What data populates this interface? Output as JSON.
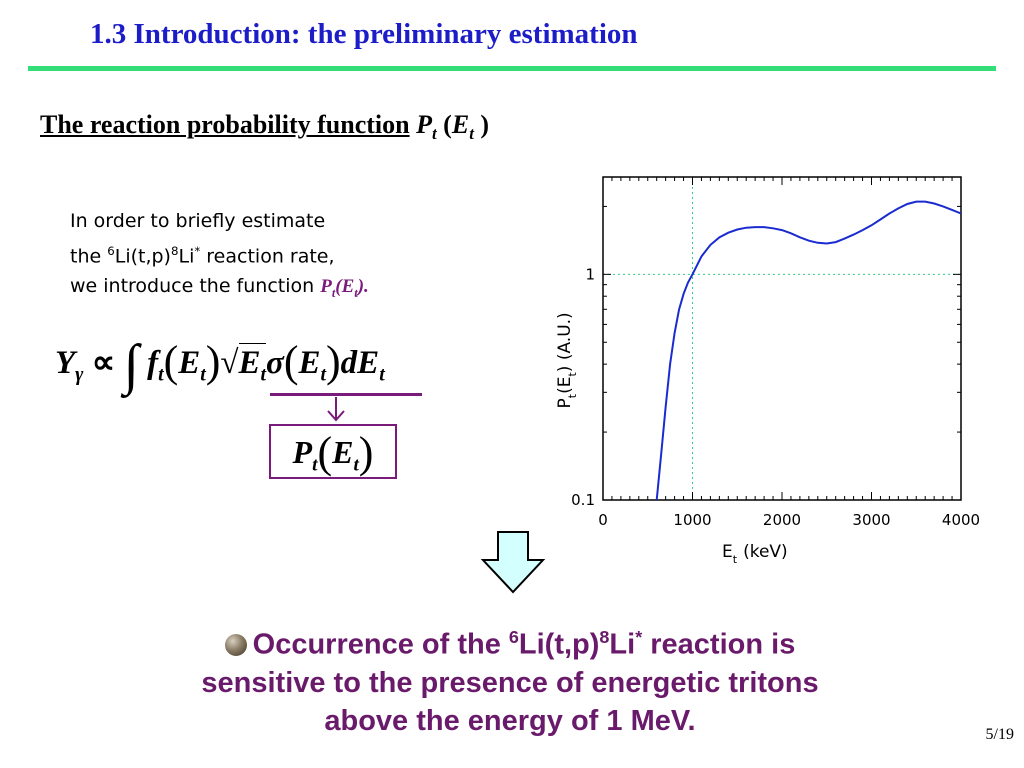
{
  "slide": {
    "title": "1.3 Introduction: the preliminary estimation",
    "subtitle_text": "The reaction probability function",
    "page_number": "5/19"
  },
  "intro": {
    "line1": "In order to briefly estimate",
    "line2_pre": "the ",
    "line2_sup1": "6",
    "line2_mid": "Li(t,p)",
    "line2_sup2": "8",
    "line2_li": "Li",
    "line2_sup3": "*",
    "line2_post": " reaction rate,",
    "line3": "we introduce the function ",
    "line3_fn": "P",
    "line3_fn_sub": "t",
    "line3_fn_arg": "(E",
    "line3_fn_arg_sub": "t",
    "line3_fn_close": ")."
  },
  "conclusion": {
    "pre": "Occurrence of the ",
    "sup1": "6",
    "mid": "Li(t,p)",
    "sup2": "8",
    "li": "Li",
    "sup3": "*",
    "post": " reaction is",
    "line2": "sensitive to the presence of energetic tritons",
    "line3": "above the energy of 1 MeV."
  },
  "colors": {
    "title": "#1c1cc8",
    "rule": "#33dd77",
    "purple": "#7a1a7a",
    "curve": "#1a2bd0",
    "grid": "#33cc88",
    "arrow_fill": "#d4ffff"
  },
  "chart_data": {
    "type": "line",
    "xlabel": "E",
    "xlabel_sub": "t",
    "xlabel_unit": "(keV)",
    "ylabel": "P",
    "ylabel_sub": "t",
    "ylabel_arg": "(E",
    "ylabel_arg_sub": "t",
    "ylabel_unit": ") (A.U.)",
    "xlim": [
      0,
      4000
    ],
    "ylim": [
      0.1,
      2.7
    ],
    "yscale": "log",
    "x_ticks": [
      "0",
      "1000",
      "2000",
      "3000",
      "4000"
    ],
    "y_ticks": [
      "0.1",
      "1"
    ],
    "reference_lines": {
      "x": 1000,
      "y": 1
    },
    "series": [
      {
        "x": [
          600,
          650,
          700,
          750,
          800,
          850,
          900,
          950,
          1000,
          1100,
          1200,
          1300,
          1400,
          1500,
          1600,
          1700,
          1800,
          1900,
          2000,
          2100,
          2200,
          2300,
          2400,
          2500,
          2600,
          2700,
          2800,
          2900,
          3000,
          3100,
          3200,
          3300,
          3400,
          3500,
          3600,
          3700,
          3800,
          3900,
          4000
        ],
        "values": [
          0.1,
          0.16,
          0.26,
          0.4,
          0.55,
          0.7,
          0.82,
          0.92,
          1.0,
          1.2,
          1.35,
          1.46,
          1.53,
          1.58,
          1.61,
          1.62,
          1.62,
          1.6,
          1.57,
          1.52,
          1.46,
          1.41,
          1.38,
          1.37,
          1.39,
          1.44,
          1.5,
          1.57,
          1.65,
          1.75,
          1.86,
          1.96,
          2.05,
          2.1,
          2.1,
          2.06,
          2.0,
          1.93,
          1.86
        ]
      }
    ]
  }
}
